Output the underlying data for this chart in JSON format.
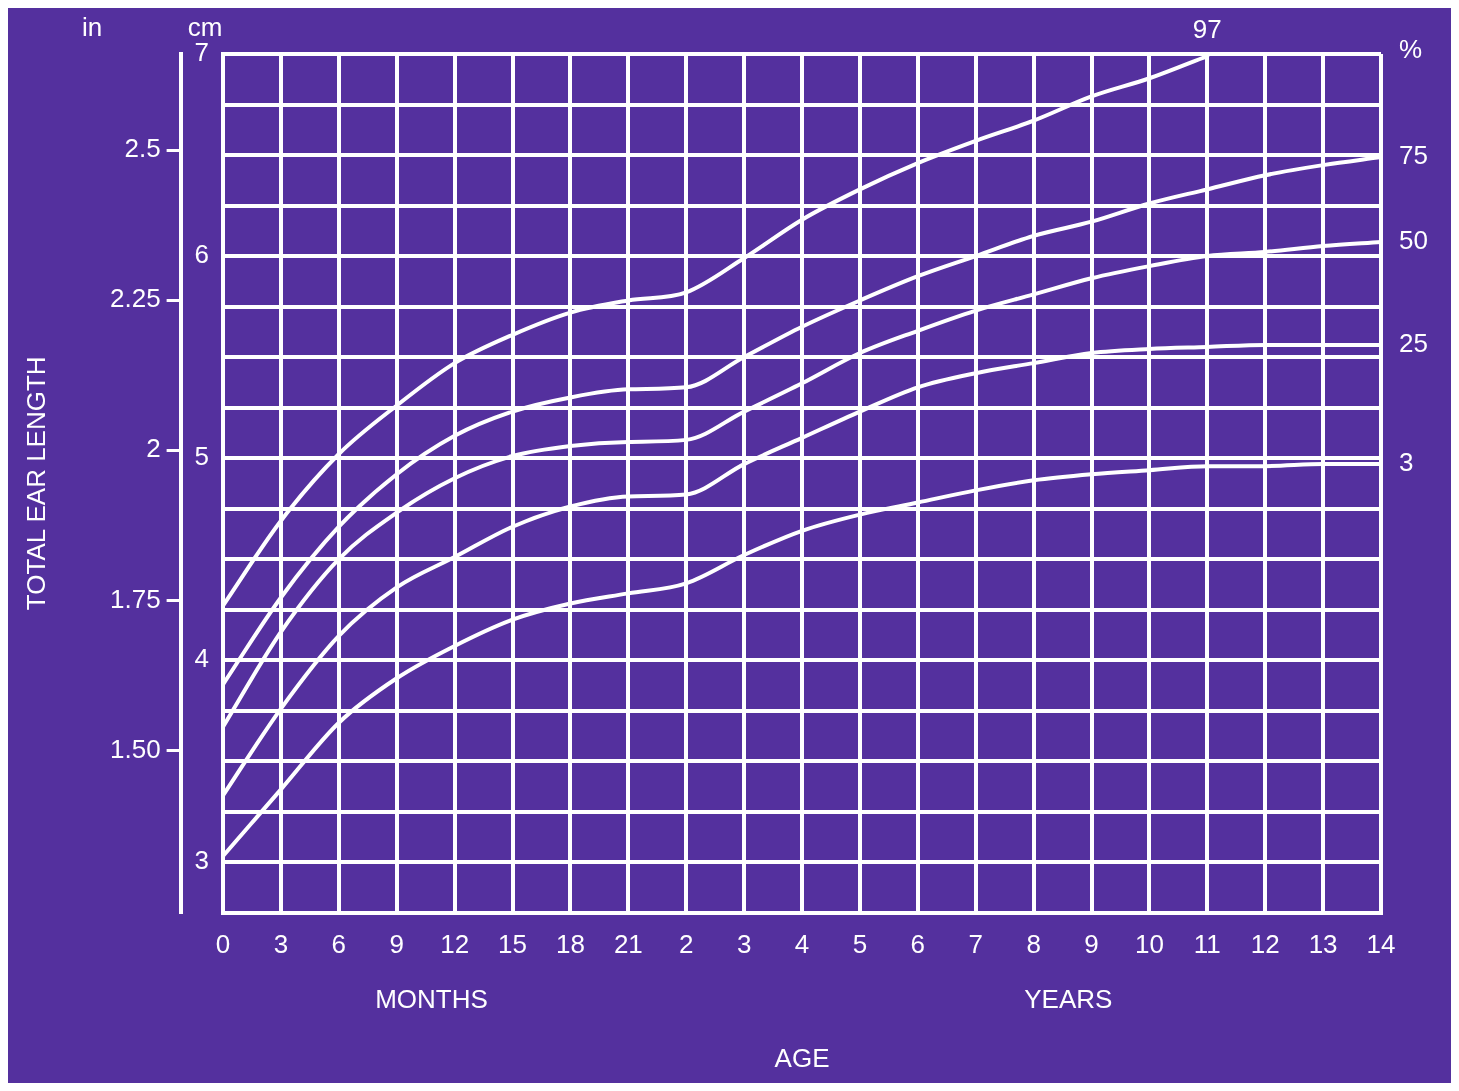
{
  "chart_data": {
    "type": "line",
    "xlabel": "AGE",
    "ylabel": "TOTAL EAR LENGTH",
    "categories": [
      "0",
      "3",
      "6",
      "9",
      "12",
      "15",
      "18",
      "21",
      "2",
      "3",
      "4",
      "5",
      "6",
      "7",
      "8",
      "9",
      "10",
      "11",
      "12",
      "13",
      "14"
    ],
    "series": [
      {
        "name": "97",
        "color": "#ffffff",
        "axis": "y2",
        "values": [
          4.27,
          4.69,
          5.02,
          5.26,
          5.47,
          5.61,
          5.72,
          5.78,
          5.82,
          5.99,
          6.18,
          6.33,
          6.46,
          6.57,
          6.67,
          6.79,
          6.88,
          6.99,
          null,
          null,
          null
        ]
      },
      {
        "name": "75",
        "color": "#ffffff",
        "axis": "y2",
        "values": [
          3.88,
          4.31,
          4.66,
          4.92,
          5.11,
          5.23,
          5.3,
          5.34,
          5.35,
          5.5,
          5.65,
          5.78,
          5.9,
          6.0,
          6.1,
          6.17,
          6.26,
          6.33,
          6.4,
          6.45,
          6.49
        ]
      },
      {
        "name": "50",
        "color": "#ffffff",
        "axis": "y2",
        "values": [
          3.67,
          4.14,
          4.5,
          4.73,
          4.9,
          5.01,
          5.06,
          5.08,
          5.09,
          5.23,
          5.37,
          5.52,
          5.63,
          5.73,
          5.81,
          5.89,
          5.95,
          6.0,
          6.02,
          6.05,
          6.07
        ]
      },
      {
        "name": "25",
        "color": "#ffffff",
        "axis": "y2",
        "values": [
          3.33,
          3.76,
          4.12,
          4.36,
          4.51,
          4.66,
          4.76,
          4.81,
          4.82,
          4.97,
          5.1,
          5.23,
          5.35,
          5.42,
          5.47,
          5.52,
          5.54,
          5.55,
          5.56,
          5.56,
          5.56
        ]
      },
      {
        "name": "3",
        "color": "#ffffff",
        "axis": "y2",
        "values": [
          3.03,
          3.36,
          3.69,
          3.91,
          4.07,
          4.2,
          4.28,
          4.33,
          4.38,
          4.52,
          4.64,
          4.72,
          4.78,
          4.84,
          4.89,
          4.92,
          4.94,
          4.96,
          4.96,
          4.97,
          4.97
        ]
      }
    ],
    "ylim": [
      1.23,
      2.66
    ],
    "yticks": [
      {
        "value": 1.5,
        "label": "1.50"
      },
      1.75,
      2,
      2.25,
      2.5
    ],
    "y2lim": [
      2.75,
      7
    ],
    "y2ticks": [
      {
        "value": 2.75,
        "label": null
      },
      3,
      {
        "value": 3.25,
        "label": null
      },
      {
        "value": 3.5,
        "label": null
      },
      {
        "value": 3.75,
        "label": null
      },
      4,
      {
        "value": 4.25,
        "label": null
      },
      {
        "value": 4.5,
        "label": null
      },
      {
        "value": 4.75,
        "label": null
      },
      5,
      {
        "value": 5.25,
        "label": null
      },
      {
        "value": 5.5,
        "label": null
      },
      {
        "value": 5.75,
        "label": null
      },
      6,
      {
        "value": 6.25,
        "label": null
      },
      {
        "value": 6.5,
        "label": null
      },
      {
        "value": 6.75,
        "label": null
      },
      7
    ],
    "annotations": [
      "in",
      "cm",
      "%",
      "MONTHS",
      "YEARS"
    ],
    "grid": true,
    "legend": false,
    "marker": "none",
    "line_style": "solid"
  }
}
